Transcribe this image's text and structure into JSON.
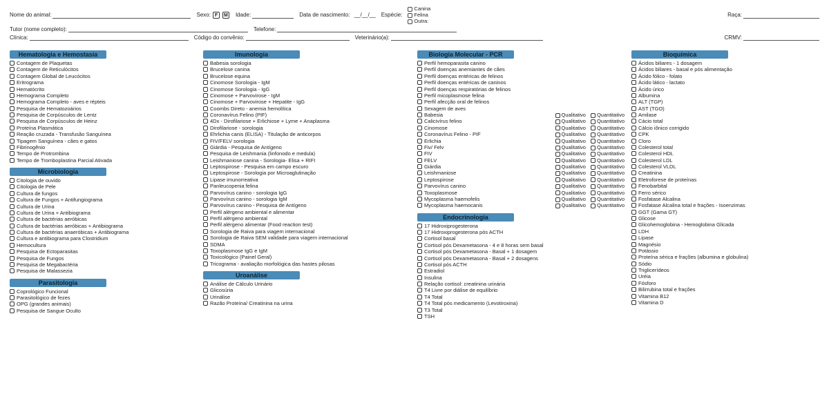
{
  "colors": {
    "section_bg": "#4a8bb8",
    "text": "#222",
    "border": "#444"
  },
  "header": {
    "nome_animal": "Nome do animal:",
    "sexo": "Sexo:",
    "sexo_f": "F",
    "sexo_m": "M",
    "idade": "Idade:",
    "data_nasc": "Data de nascimento:",
    "date_skel": "__/__/__",
    "especie": "Espécie:",
    "canina": "Canina",
    "felina": "Felina",
    "outra": "Outra:",
    "raca": "Raça:",
    "tutor": "Tutor (nome completo):",
    "telefone": "Telefone:",
    "clinica": "Clínica:",
    "codigo_conv": "Código do convênio:",
    "veterinario": "Veterinário(a):",
    "crmv": "CRMV:"
  },
  "sections": {
    "hematologia": {
      "title": "Hematologia e Hemostasia",
      "items": [
        "Contagem de Plaquetas",
        "Contagem de Reticulócitos",
        "Contagem Global de Leucócitos",
        "Eritrograma",
        "Hematócrito",
        "Hemograma Completo",
        "Hemograma Completo - aves e répteis",
        "Pesquisa de Hematozoários",
        "Pesquisa de Corpúsculos de Lentz",
        "Pesquisa de Corpúsculos de Heinz",
        "Proteína Plasmática",
        "Reação cruzada - Transfusão Sanguínea",
        "Tipagem Sanguínea - cães e gatos",
        "Fibrinogênio",
        "Tempo de Protrombina",
        "Tempo de Tromboplastina Parcial Ativada"
      ]
    },
    "microbiologia": {
      "title": "Microbiologia",
      "items": [
        "Citologia de ouvido",
        "Citologia de Pele",
        "Cultura de fungos",
        "Cultura de Fungos + Antifungiograma",
        "Cultura de Urina",
        "Cultura de Urina + Antibiograma",
        "Cultura de bactérias aeróbicas",
        "Cultura de bactérias aeróbicas + Antibiograma",
        "Cultura de bactérias anaeróbicas + Antibiograma",
        "Cultura e antibiograma para Clostridium",
        "Hemocultura",
        "Pesquisa de Ectoparasitas",
        "Pesquisa de Fungos",
        "Pesquisa de Megabactéria",
        "Pesquisa de Malassezia"
      ]
    },
    "parasitologia": {
      "title": "Parasitologia",
      "items": [
        "Coprológico Funcional",
        "Parasitológico de fezes",
        "OPG (grandes animais)",
        "Pesquisa de Sangue Oculto"
      ]
    },
    "imunologia": {
      "title": "Imunologia",
      "items": [
        "Babesia sorologia",
        "Brucelose canina",
        "Brucelose equina",
        "Cinomose Sorologia - IgM",
        "Cinomose Sorologia - IgG",
        "Cinomose + Parvovirose - IgM",
        "Cinomose + Parvovirose + Hepatite - IgG",
        "Coombs Direto - anemia hemolítica",
        "Coronavírus Felino (PIF)",
        "4Dx - Dirofilariose + Erlichiose + Lyme + Anaplasma",
        "Dirofilariose - sorologia",
        "Ehrlichia canis (ELISA) - Titulação de anticorpos",
        "FIV/FELV sorologia",
        "Giárdia - Pesquisa de Antígeno",
        "Pesquisa de Leishmania (linfonodo e medula)",
        "Leishmaniose canina - Sorologia- Elisa + RIFI",
        "Leptospirose - Pesquisa em campo escuro",
        "Leptospirose - Sorologia por Microaglutinação",
        "Lipase imunorreativa",
        "Panleucopenia felina",
        "Parvovírus canino - sorologia IgG",
        "Parvovírus canino - sorologia IgM",
        "Parvovírus canino - Pesquisa de Antígeno",
        "Perfil alérgeno ambiental e alimentar",
        "Perfil alérgeno ambiental",
        "Perfil alérgeno alimentar (Food reaction test)",
        "Sorologia de Raiva para viagem internacional",
        "Sorologia de Raiva SEM validade para viagem internacional",
        "SDMA",
        "Toxoplasmose IgG e IgM",
        "Toxicológico (Painel Geral)",
        "Tricograma - avaliação morfológica das hastes pilosas"
      ]
    },
    "uroanalise": {
      "title": "Uroanálise",
      "items": [
        "Análise de Cálculo Urinário",
        "Glicosúria",
        "Urinálise",
        "Razão Proteína/ Creatinina na urina"
      ]
    },
    "pcr": {
      "title": "Biologia Molecular - PCR",
      "plain": [
        "Perfil hemoparasita canino",
        "Perfil doenças anemiantes de cães",
        "Perfil doenças entéricas de felinos",
        "Perfil doenças entéricas de caninos",
        "Perfil doenças respiratórias de felinos",
        "Perfil micoplasmose felina",
        "Perfil afecção oral de felinos",
        "Sexagem de aves"
      ],
      "qual_label": "Qualitativo",
      "quant_label": "Quantitativo",
      "qual_items": [
        "Babesia",
        "Calicivírus felino",
        "Cinomose",
        "Coronavírus Felino - PIF",
        "Erlichia",
        "Fiv/ Felv",
        "FIV",
        "FELV",
        "Giárdia",
        "Leishmaniose",
        "Leptospirose",
        "Parvovírus canino",
        "Toxoplasmose",
        "Mycoplasma haemofelis",
        "Mycoplasma haemocanis"
      ]
    },
    "endocrinologia": {
      "title": "Endocrinologia",
      "items": [
        "17 Hidroxiprogesterona",
        "17 Hidroxiprogesterona pós ACTH",
        "Cortisol basal",
        "Cortisol pós Dexametasona - 4 e 8 horas sem basal",
        "Cortisol pós Dexametasona - Basal + 1 dosagem",
        "Cortisol pós Dexametasona - Basal + 2 dosagens",
        "Cortisol pós ACTH",
        "Estradiol",
        "Insulina",
        "Relação cortisol: creatinina urinária",
        "T4 Livre por diálise de equilíbrio",
        "T4 Total",
        "T4 Total pós medicamento (Levotiroxina)",
        "T3 Total",
        "TSH"
      ]
    },
    "bioquimica": {
      "title": "Bioquímica",
      "items": [
        "Ácidos biliares - 1 dosagem",
        "Ácidos biliares - basal e pós alimentação",
        "Ácido fólico - folato",
        "Ácido lático - lactato",
        "Ácido úrico",
        "Albumina",
        "ALT (TGP)",
        "AST (TGO)",
        "Amilase",
        "Cácio total",
        "Cálcio iônico corrigido",
        "CPK",
        "Cloro",
        "Colesterol total",
        "Colesterol HDL",
        "Colesterol LDL",
        "Colesterol VLDL",
        "Creatinina",
        "Eletroforese de proteínas",
        "Fenobarbital",
        "Ferro sérico",
        "Fosfatase Alcalina",
        "Fosfatase Alcalina total e frações - Isoenzimas",
        "GGT (Gama GT)",
        "Glicose",
        "Glicohemoglobina - Hemoglobina Glicada",
        "LDH",
        "Lipase",
        "Magnésio",
        "Potássio",
        "Proteína sérica e frações (albumina e globulina)",
        "Sódio",
        "Triglicerídeos",
        "Uréia",
        "Fósforo",
        "Bilirrubina total e frações",
        "Vitamina B12",
        "Vitamina D"
      ]
    }
  }
}
